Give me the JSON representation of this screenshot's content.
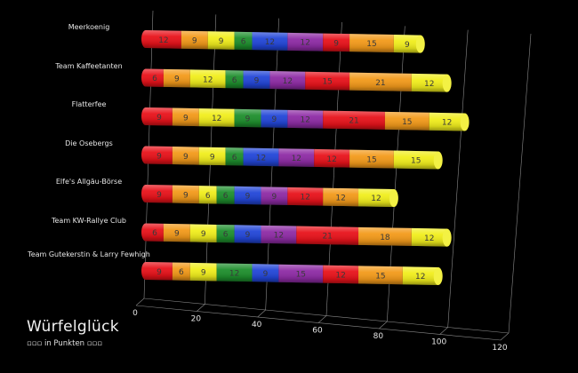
{
  "chart_data": {
    "type": "bar",
    "orientation": "horizontal",
    "stacked": true,
    "style": "3d-cylinder",
    "title": "Würfelglück",
    "subtitle": "▫▫▫ in Punkten ▫▫▫",
    "xlim": [
      0,
      120
    ],
    "xticks": [
      0,
      20,
      40,
      60,
      80,
      100,
      120
    ],
    "grid": true,
    "categories": [
      "Meerkoenig",
      "Team Kaffeetanten",
      "Flatterfee",
      "Die Osebergs",
      "Elfe's Allgäu-Börse",
      "Team KW-Rallye Club",
      "Team Gutekerstin & Larry Fewhigh"
    ],
    "series": [
      {
        "color": "#e8121a",
        "values": [
          12,
          6,
          9,
          9,
          9,
          6,
          9
        ]
      },
      {
        "color": "#f39a1a",
        "values": [
          9,
          9,
          9,
          9,
          9,
          9,
          6
        ]
      },
      {
        "color": "#f1ee1c",
        "values": [
          9,
          12,
          12,
          9,
          6,
          9,
          9
        ]
      },
      {
        "color": "#1e8f2d",
        "values": [
          6,
          6,
          9,
          6,
          6,
          6,
          12
        ]
      },
      {
        "color": "#2246d8",
        "values": [
          12,
          9,
          9,
          12,
          9,
          9,
          9
        ]
      },
      {
        "color": "#8e2ba5",
        "values": [
          12,
          12,
          12,
          12,
          9,
          12,
          15
        ]
      },
      {
        "color": "#e8121a",
        "values": [
          9,
          15,
          21,
          12,
          12,
          21,
          12
        ]
      },
      {
        "color": "#f39a1a",
        "values": [
          15,
          21,
          15,
          15,
          12,
          18,
          15
        ]
      },
      {
        "color": "#f1ee1c",
        "values": [
          9,
          12,
          12,
          15,
          12,
          12,
          12
        ]
      }
    ]
  }
}
